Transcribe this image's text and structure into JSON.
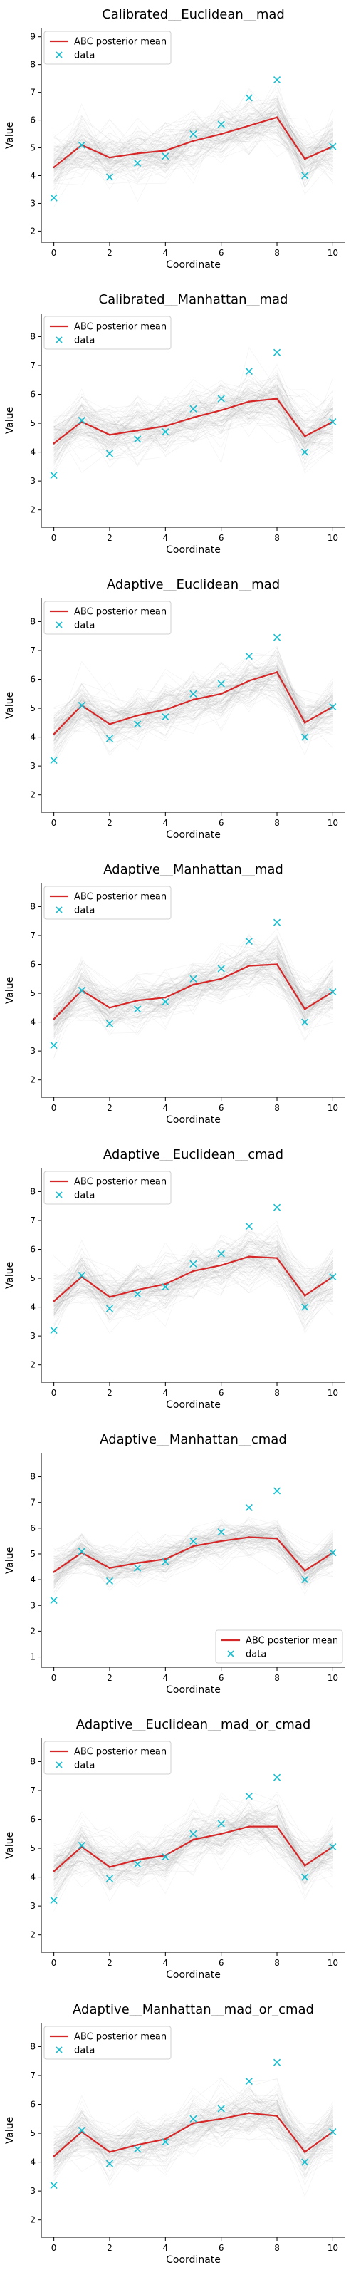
{
  "chart_data": [
    {
      "type": "line",
      "title": "Calibrated__Euclidean__mad",
      "xlabel": "Coordinate",
      "ylabel": "Value",
      "xlim": [
        0,
        10
      ],
      "ylim": [
        1.6,
        9.3
      ],
      "yticks": [
        2,
        3,
        4,
        5,
        6,
        7,
        8,
        9
      ],
      "xticks": [
        0,
        2,
        4,
        6,
        8,
        10
      ],
      "legend_loc": "upper left",
      "x": [
        0,
        1,
        2,
        3,
        4,
        5,
        6,
        7,
        8,
        9,
        10
      ],
      "series": [
        {
          "name": "ABC posterior mean",
          "kind": "line",
          "color": "#d62728",
          "values": [
            4.3,
            5.1,
            4.65,
            4.8,
            4.9,
            5.25,
            5.5,
            5.8,
            6.1,
            4.6,
            5.05
          ]
        },
        {
          "name": "data",
          "kind": "marker",
          "color": "#17becf",
          "values": [
            3.2,
            5.1,
            3.95,
            4.45,
            4.7,
            5.5,
            5.85,
            6.8,
            7.45,
            4.0,
            5.05
          ]
        }
      ],
      "band_spread": 0.9
    },
    {
      "type": "line",
      "title": "Calibrated__Manhattan__mad",
      "xlabel": "Coordinate",
      "ylabel": "Value",
      "xlim": [
        0,
        10
      ],
      "ylim": [
        1.4,
        8.8
      ],
      "yticks": [
        2,
        3,
        4,
        5,
        6,
        7,
        8
      ],
      "xticks": [
        0,
        2,
        4,
        6,
        8,
        10
      ],
      "legend_loc": "upper left",
      "x": [
        0,
        1,
        2,
        3,
        4,
        5,
        6,
        7,
        8,
        9,
        10
      ],
      "series": [
        {
          "name": "ABC posterior mean",
          "kind": "line",
          "color": "#d62728",
          "values": [
            4.3,
            5.05,
            4.6,
            4.75,
            4.9,
            5.2,
            5.45,
            5.75,
            5.85,
            4.55,
            5.05
          ]
        },
        {
          "name": "data",
          "kind": "marker",
          "color": "#17becf",
          "values": [
            3.2,
            5.1,
            3.95,
            4.45,
            4.7,
            5.5,
            5.85,
            6.8,
            7.45,
            4.0,
            5.05
          ]
        }
      ],
      "band_spread": 0.9
    },
    {
      "type": "line",
      "title": "Adaptive__Euclidean__mad",
      "xlabel": "Coordinate",
      "ylabel": "Value",
      "xlim": [
        0,
        10
      ],
      "ylim": [
        1.4,
        8.8
      ],
      "yticks": [
        2,
        3,
        4,
        5,
        6,
        7,
        8
      ],
      "xticks": [
        0,
        2,
        4,
        6,
        8,
        10
      ],
      "legend_loc": "upper left",
      "x": [
        0,
        1,
        2,
        3,
        4,
        5,
        6,
        7,
        8,
        9,
        10
      ],
      "series": [
        {
          "name": "ABC posterior mean",
          "kind": "line",
          "color": "#d62728",
          "values": [
            4.1,
            5.1,
            4.45,
            4.75,
            4.95,
            5.3,
            5.5,
            5.95,
            6.25,
            4.5,
            5.05
          ]
        },
        {
          "name": "data",
          "kind": "marker",
          "color": "#17becf",
          "values": [
            3.2,
            5.1,
            3.95,
            4.45,
            4.7,
            5.5,
            5.85,
            6.8,
            7.45,
            4.0,
            5.05
          ]
        }
      ],
      "band_spread": 0.8
    },
    {
      "type": "line",
      "title": "Adaptive__Manhattan__mad",
      "xlabel": "Coordinate",
      "ylabel": "Value",
      "xlim": [
        0,
        10
      ],
      "ylim": [
        1.4,
        8.8
      ],
      "yticks": [
        2,
        3,
        4,
        5,
        6,
        7,
        8
      ],
      "xticks": [
        0,
        2,
        4,
        6,
        8,
        10
      ],
      "legend_loc": "upper left",
      "x": [
        0,
        1,
        2,
        3,
        4,
        5,
        6,
        7,
        8,
        9,
        10
      ],
      "series": [
        {
          "name": "ABC posterior mean",
          "kind": "line",
          "color": "#d62728",
          "values": [
            4.1,
            5.1,
            4.5,
            4.75,
            4.85,
            5.3,
            5.5,
            5.95,
            6.0,
            4.45,
            5.05
          ]
        },
        {
          "name": "data",
          "kind": "marker",
          "color": "#17becf",
          "values": [
            3.2,
            5.1,
            3.95,
            4.45,
            4.7,
            5.5,
            5.85,
            6.8,
            7.45,
            4.0,
            5.05
          ]
        }
      ],
      "band_spread": 0.85
    },
    {
      "type": "line",
      "title": "Adaptive__Euclidean__cmad",
      "xlabel": "Coordinate",
      "ylabel": "Value",
      "xlim": [
        0,
        10
      ],
      "ylim": [
        1.4,
        8.8
      ],
      "yticks": [
        2,
        3,
        4,
        5,
        6,
        7,
        8
      ],
      "xticks": [
        0,
        2,
        4,
        6,
        8,
        10
      ],
      "legend_loc": "upper left",
      "x": [
        0,
        1,
        2,
        3,
        4,
        5,
        6,
        7,
        8,
        9,
        10
      ],
      "series": [
        {
          "name": "ABC posterior mean",
          "kind": "line",
          "color": "#d62728",
          "values": [
            4.2,
            5.05,
            4.35,
            4.6,
            4.8,
            5.25,
            5.45,
            5.75,
            5.7,
            4.4,
            5.05
          ]
        },
        {
          "name": "data",
          "kind": "marker",
          "color": "#17becf",
          "values": [
            3.2,
            5.1,
            3.95,
            4.45,
            4.7,
            5.5,
            5.85,
            6.8,
            7.45,
            4.0,
            5.05
          ]
        }
      ],
      "band_spread": 0.85
    },
    {
      "type": "line",
      "title": "Adaptive__Manhattan__cmad",
      "xlabel": "Coordinate",
      "ylabel": "Value",
      "xlim": [
        0,
        10
      ],
      "ylim": [
        0.6,
        8.9
      ],
      "yticks": [
        1,
        2,
        3,
        4,
        5,
        6,
        7,
        8
      ],
      "xticks": [
        0,
        2,
        4,
        6,
        8,
        10
      ],
      "legend_loc": "lower right",
      "x": [
        0,
        1,
        2,
        3,
        4,
        5,
        6,
        7,
        8,
        9,
        10
      ],
      "series": [
        {
          "name": "ABC posterior mean",
          "kind": "line",
          "color": "#d62728",
          "values": [
            4.3,
            5.05,
            4.45,
            4.65,
            4.8,
            5.3,
            5.5,
            5.65,
            5.6,
            4.35,
            5.05
          ]
        },
        {
          "name": "data",
          "kind": "marker",
          "color": "#17becf",
          "values": [
            3.2,
            5.1,
            3.95,
            4.45,
            4.7,
            5.5,
            5.85,
            6.8,
            7.45,
            4.0,
            5.05
          ]
        }
      ],
      "band_spread": 0.7
    },
    {
      "type": "line",
      "title": "Adaptive__Euclidean__mad_or_cmad",
      "xlabel": "Coordinate",
      "ylabel": "Value",
      "xlim": [
        0,
        10
      ],
      "ylim": [
        1.4,
        8.8
      ],
      "yticks": [
        2,
        3,
        4,
        5,
        6,
        7,
        8
      ],
      "xticks": [
        0,
        2,
        4,
        6,
        8,
        10
      ],
      "legend_loc": "upper left",
      "x": [
        0,
        1,
        2,
        3,
        4,
        5,
        6,
        7,
        8,
        9,
        10
      ],
      "series": [
        {
          "name": "ABC posterior mean",
          "kind": "line",
          "color": "#d62728",
          "values": [
            4.2,
            5.05,
            4.35,
            4.6,
            4.75,
            5.3,
            5.5,
            5.75,
            5.75,
            4.4,
            5.05
          ]
        },
        {
          "name": "data",
          "kind": "marker",
          "color": "#17becf",
          "values": [
            3.2,
            5.1,
            3.95,
            4.45,
            4.7,
            5.5,
            5.85,
            6.8,
            7.45,
            4.0,
            5.05
          ]
        }
      ],
      "band_spread": 0.85
    },
    {
      "type": "line",
      "title": "Adaptive__Manhattan__mad_or_cmad",
      "xlabel": "Coordinate",
      "ylabel": "Value",
      "xlim": [
        0,
        10
      ],
      "ylim": [
        1.4,
        8.8
      ],
      "yticks": [
        2,
        3,
        4,
        5,
        6,
        7,
        8
      ],
      "xticks": [
        0,
        2,
        4,
        6,
        8,
        10
      ],
      "legend_loc": "upper left",
      "x": [
        0,
        1,
        2,
        3,
        4,
        5,
        6,
        7,
        8,
        9,
        10
      ],
      "series": [
        {
          "name": "ABC posterior mean",
          "kind": "line",
          "color": "#d62728",
          "values": [
            4.2,
            5.05,
            4.35,
            4.6,
            4.8,
            5.35,
            5.5,
            5.7,
            5.6,
            4.35,
            5.05
          ]
        },
        {
          "name": "data",
          "kind": "marker",
          "color": "#17becf",
          "values": [
            3.2,
            5.1,
            3.95,
            4.45,
            4.7,
            5.5,
            5.85,
            6.8,
            7.45,
            4.0,
            5.05
          ]
        }
      ],
      "band_spread": 0.85
    }
  ]
}
